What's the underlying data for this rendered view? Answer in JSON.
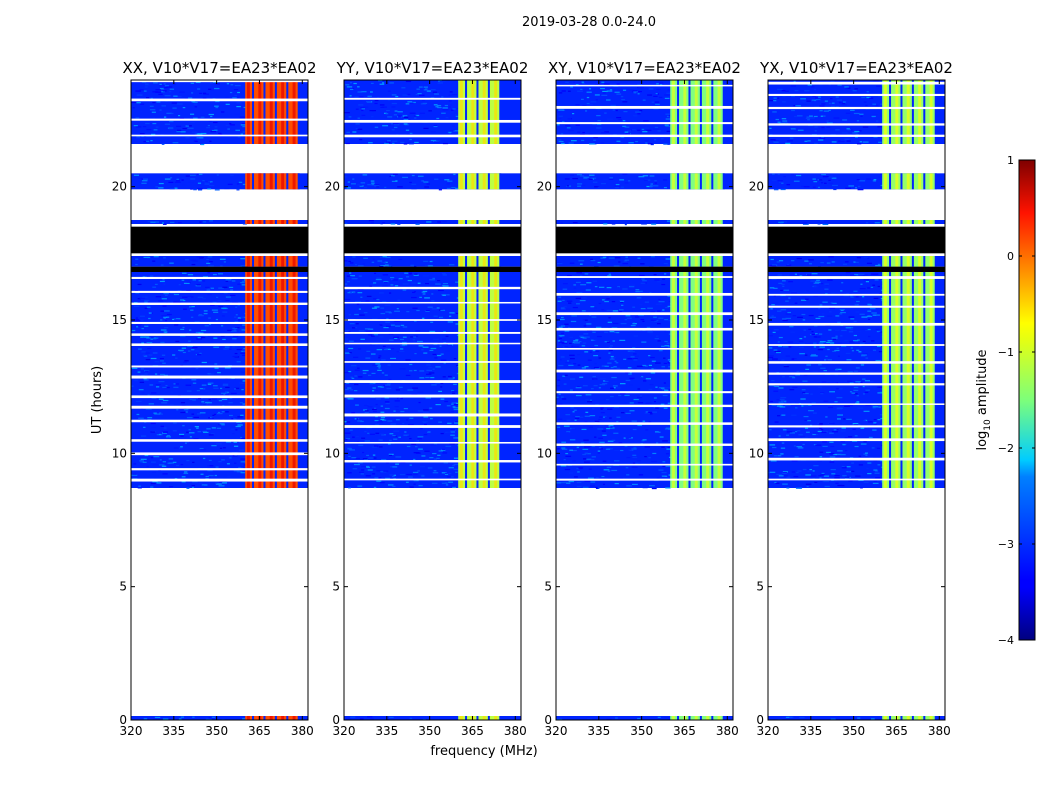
{
  "figure": {
    "suptitle": "2019-03-28 0.0-24.0"
  },
  "chart_data": {
    "type": "heatmap",
    "xlabel": "frequency (MHz)",
    "ylabel": "UT (hours)",
    "xlim": [
      320,
      382
    ],
    "ylim": [
      0,
      24
    ],
    "x_ticks": [
      320,
      335,
      350,
      365,
      380
    ],
    "y_ticks": [
      0,
      5,
      10,
      15,
      20
    ],
    "panels": [
      {
        "title": "XX, V10*V17=EA23*EA02",
        "high_band_level": 0.2
      },
      {
        "title": "YY, V10*V17=EA23*EA02",
        "high_band_level": -1.0
      },
      {
        "title": "XY, V10*V17=EA23*EA02",
        "high_band_level": -1.3
      },
      {
        "title": "YX, V10*V17=EA23*EA02",
        "high_band_level": -1.2
      }
    ],
    "background_level": -3.2,
    "band_start_mhz": 360,
    "band_end_mhz": 379,
    "band_end_mhz_yy": 375,
    "data_segments_hours": [
      [
        0.0,
        0.15
      ],
      [
        8.7,
        16.8
      ],
      [
        17.0,
        17.4
      ],
      [
        18.6,
        18.75
      ],
      [
        19.9,
        20.5
      ],
      [
        21.6,
        24.0
      ]
    ],
    "flagged_segments_hours": [
      [
        16.8,
        17.0
      ],
      [
        17.5,
        18.5
      ]
    ],
    "colorbar": {
      "label_prefix": "log",
      "label_sub": "10",
      "label_suffix": " amplitude",
      "min": -4,
      "max": 1,
      "ticks": [
        -4,
        -3,
        -2,
        -1,
        0,
        1
      ],
      "colormap": "jet"
    }
  }
}
